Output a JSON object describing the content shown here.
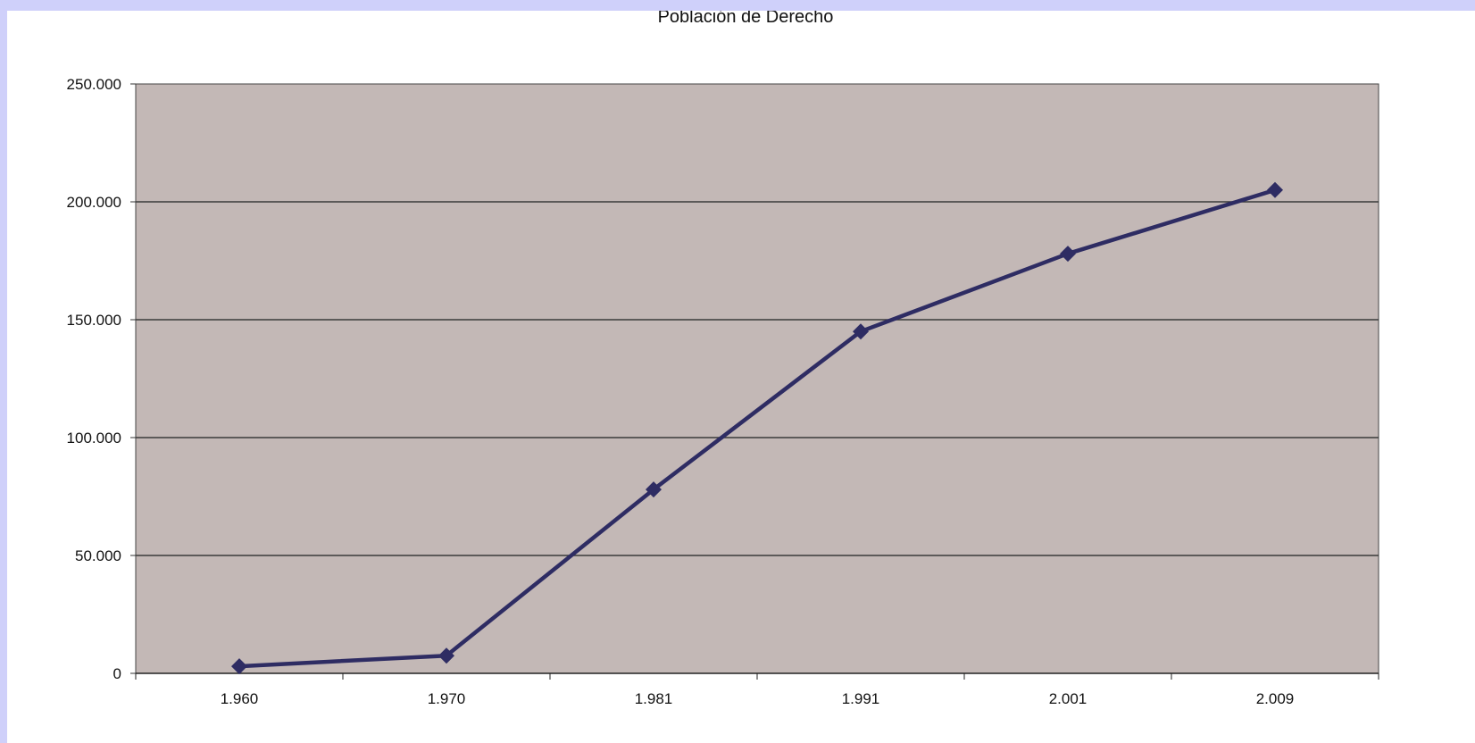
{
  "chart_data": {
    "type": "line",
    "title": "Población de Derecho",
    "xlabel": "",
    "ylabel": "",
    "categories": [
      "1.960",
      "1.970",
      "1.981",
      "1.991",
      "2.001",
      "2.009"
    ],
    "series": [
      {
        "values": [
          3000,
          7500,
          78000,
          145000,
          178000,
          205000
        ]
      }
    ],
    "ylim": [
      0,
      250000
    ],
    "yticks": [
      0,
      50000,
      100000,
      150000,
      200000,
      250000
    ],
    "ytick_labels": [
      "0",
      "50.000",
      "100.000",
      "150.000",
      "200.000",
      "250.000"
    ],
    "grid": true,
    "legend": "none",
    "colors": {
      "plot_background": "#c3b8b6",
      "line": "#2e2c63",
      "gridline": "#3a3a3a",
      "page_background": "#cfd0fa"
    }
  }
}
